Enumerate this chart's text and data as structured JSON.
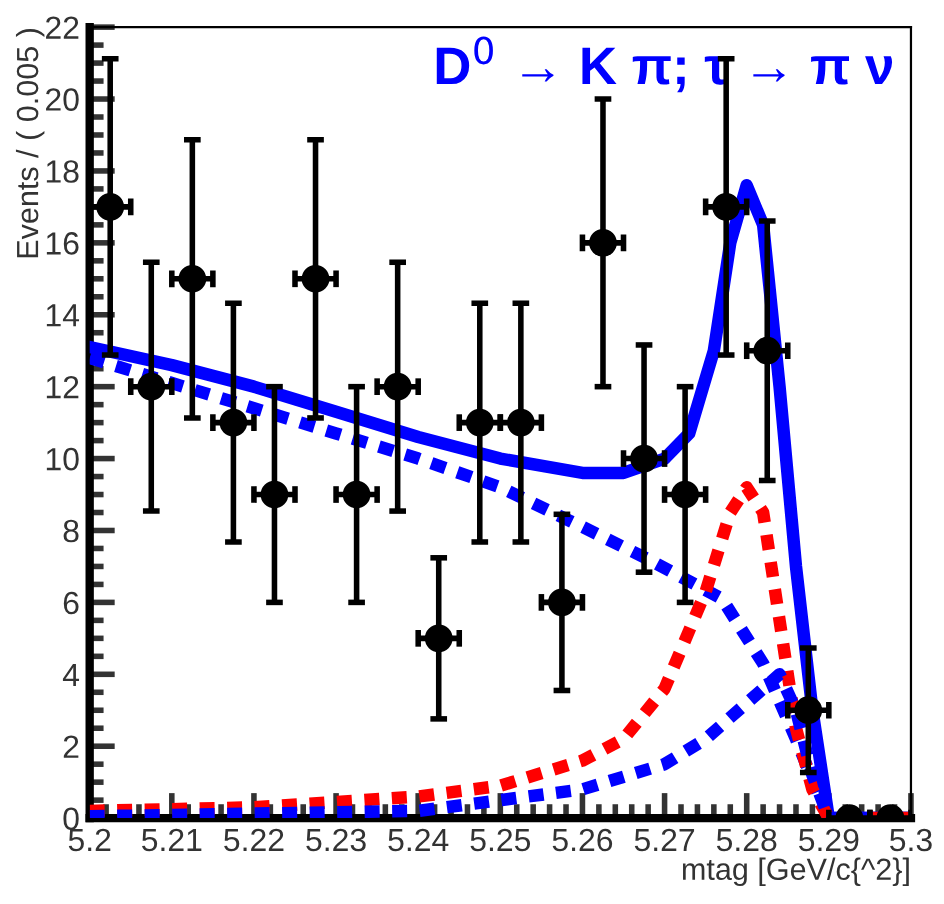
{
  "chart_data": {
    "type": "scatter",
    "title": "D$^{0}$ → K π; τ → π ν",
    "xlabel": "mtag [GeV/c{^2}]",
    "ylabel": "Events / ( 0.005 )",
    "xlim": [
      5.2,
      5.3
    ],
    "ylim": [
      0,
      22
    ],
    "xticks": [
      5.2,
      5.21,
      5.22,
      5.23,
      5.24,
      5.25,
      5.26,
      5.27,
      5.28,
      5.29,
      5.3
    ],
    "yticks": [
      0,
      2,
      4,
      6,
      8,
      10,
      12,
      14,
      16,
      18,
      20,
      22
    ],
    "grid": false,
    "legend": false,
    "series": [
      {
        "color": "#000000",
        "marker": "circle",
        "x": [
          5.2025,
          5.2075,
          5.2125,
          5.2175,
          5.2225,
          5.2275,
          5.2325,
          5.2375,
          5.2425,
          5.2475,
          5.2525,
          5.2575,
          5.2625,
          5.2675,
          5.2725,
          5.2775,
          5.2825,
          5.2875,
          5.2925,
          5.2975
        ],
        "values": [
          17,
          12,
          15,
          11,
          9,
          15,
          9,
          12,
          5,
          11,
          11,
          6,
          16,
          10,
          9,
          17,
          13,
          3,
          0,
          0
        ],
        "errors": [
          4.12,
          3.46,
          3.87,
          3.32,
          3,
          3.87,
          3,
          3.46,
          2.24,
          3.32,
          3.32,
          2.45,
          4,
          3.16,
          3,
          4.12,
          3.61,
          1.73,
          null,
          null
        ],
        "xerrors": [
          0.0025,
          0.0025,
          0.0025,
          0.0025,
          0.0025,
          0.0025,
          0.0025,
          0.0025,
          0.0025,
          0.0025,
          0.0025,
          0.0025,
          0.0025,
          0.0025,
          0.0025,
          0.0025,
          0.0025,
          0.0025,
          0.0025,
          0.0025
        ]
      },
      {
        "type": "line",
        "color": "#0000ff",
        "line_style": "solid",
        "x": [
          5.2,
          5.21,
          5.22,
          5.23,
          5.24,
          5.25,
          5.26,
          5.265,
          5.27,
          5.273,
          5.276,
          5.278,
          5.28,
          5.282,
          5.284,
          5.286,
          5.288,
          5.29,
          5.3
        ],
        "values": [
          13.1,
          12.6,
          12.0,
          11.3,
          10.6,
          10.0,
          9.6,
          9.6,
          10.0,
          10.7,
          13,
          16,
          17.6,
          16.5,
          12,
          7,
          3,
          0,
          0
        ]
      },
      {
        "type": "line",
        "color": "#0000ff",
        "line_style": "dashed",
        "x": [
          5.2,
          5.21,
          5.22,
          5.23,
          5.24,
          5.25,
          5.26,
          5.268,
          5.277,
          5.282,
          5.286,
          5.289,
          5.29,
          5.3
        ],
        "values": [
          12.8,
          12.1,
          11.4,
          10.7,
          10.0,
          9.2,
          8.1,
          7.2,
          6.1,
          4.3,
          2.2,
          0.5,
          0,
          0
        ]
      },
      {
        "type": "line",
        "color": "#ff0000",
        "line_style": "dashed",
        "x": [
          5.2,
          5.22,
          5.24,
          5.25,
          5.26,
          5.265,
          5.27,
          5.275,
          5.278,
          5.28,
          5.282,
          5.284,
          5.286,
          5.288,
          5.29,
          5.3
        ],
        "values": [
          0.2,
          0.3,
          0.6,
          0.9,
          1.6,
          2.2,
          3.6,
          6.3,
          8.5,
          9.2,
          8.5,
          5.5,
          2.5,
          0.8,
          0,
          0
        ]
      },
      {
        "type": "line",
        "color": "#0000ff",
        "line_style": "dashed",
        "x": [
          5.2,
          5.24,
          5.26,
          5.27,
          5.275,
          5.28,
          5.284,
          5.286,
          5.288,
          5.29,
          5.3
        ],
        "values": [
          0.05,
          0.2,
          0.8,
          1.5,
          2.2,
          3.2,
          4.0,
          3.0,
          1.2,
          0,
          0
        ]
      }
    ]
  }
}
